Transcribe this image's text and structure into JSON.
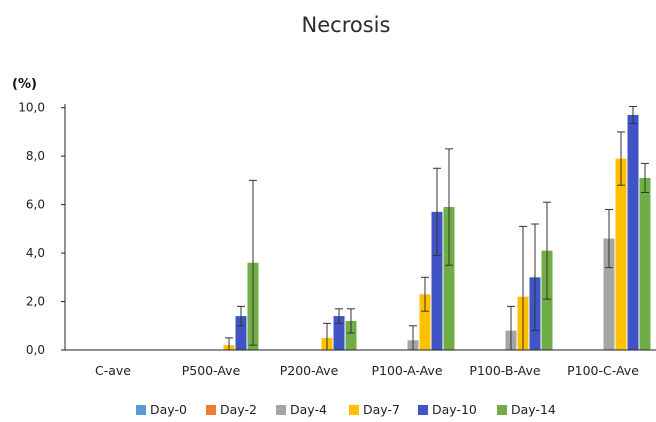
{
  "chart_data": {
    "type": "bar",
    "title": "Necrosis",
    "ylabel": "(%)",
    "xlabel": "",
    "ylim": [
      0,
      10
    ],
    "yticks": [
      "0,0",
      "2,0",
      "4,0",
      "6,0",
      "8,0",
      "10,0"
    ],
    "grid": false,
    "legend_position": "bottom",
    "categories": [
      "C-ave",
      "P500-Ave",
      "P200-Ave",
      "P100-A-Ave",
      "P100-B-Ave",
      "P100-C-Ave"
    ],
    "series": [
      {
        "name": "Day-0",
        "color": "#5b9bd5",
        "values": [
          0,
          0,
          0,
          0,
          0,
          0
        ],
        "errors": [
          0,
          0,
          0,
          0,
          0,
          0
        ]
      },
      {
        "name": "Day-2",
        "color": "#ed7d31",
        "values": [
          0,
          0,
          0,
          0,
          0,
          0
        ],
        "errors": [
          0,
          0,
          0,
          0,
          0,
          0
        ]
      },
      {
        "name": "Day-4",
        "color": "#a5a5a5",
        "values": [
          0,
          0,
          0,
          0.4,
          0.8,
          4.6
        ],
        "errors": [
          0,
          0,
          0,
          0.6,
          1.0,
          1.2
        ]
      },
      {
        "name": "Day-7",
        "color": "#ffc000",
        "values": [
          0,
          0.2,
          0.5,
          2.3,
          2.2,
          7.9
        ],
        "errors": [
          0,
          0.3,
          0.6,
          0.7,
          2.9,
          1.1
        ]
      },
      {
        "name": "Day-10",
        "color": "#4054c6",
        "values": [
          0,
          1.4,
          1.4,
          5.7,
          3.0,
          9.7
        ],
        "errors": [
          0,
          0.4,
          0.3,
          1.8,
          2.2,
          0.35
        ]
      },
      {
        "name": "Day-14",
        "color": "#70ad47",
        "values": [
          0,
          3.6,
          1.2,
          5.9,
          4.1,
          7.1
        ],
        "errors": [
          0,
          3.4,
          0.5,
          2.4,
          2.0,
          0.6
        ]
      }
    ]
  }
}
